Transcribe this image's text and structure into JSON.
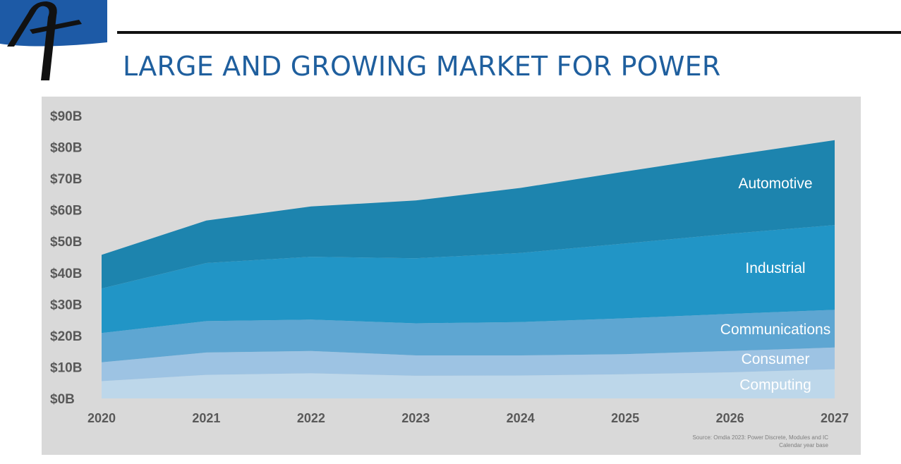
{
  "colors": {
    "title": "#1f5f9e",
    "logo_blue": "#1d5aa6",
    "panel_bg": "#d9d9d9",
    "axis_text": "#595959",
    "Computing": "#bdd7ea",
    "Consumer": "#9dc3e3",
    "Communications": "#5ea6d2",
    "Industrial": "#2195c6",
    "Automotive": "#1d84ae"
  },
  "header": {
    "title": "LARGE AND GROWING MARKET FOR POWER"
  },
  "logo": {
    "icon": "stylized-A-logo-icon"
  },
  "source": {
    "line1": "Source: Omdia 2023: Power Discrete, Modules and IC",
    "line2": "Calendar year base"
  },
  "chart_data": {
    "type": "area",
    "stacked": true,
    "title": "",
    "xlabel": "",
    "ylabel": "",
    "x": [
      "2020",
      "2021",
      "2022",
      "2023",
      "2024",
      "2025",
      "2026",
      "2027"
    ],
    "ylim": [
      0,
      90
    ],
    "y_ticks": [
      "$0B",
      "$10B",
      "$20B",
      "$30B",
      "$40B",
      "$50B",
      "$60B",
      "$70B",
      "$80B",
      "$90B"
    ],
    "grid": false,
    "legend": "inline labels on right",
    "series": [
      {
        "name": "Computing",
        "values": [
          5.5,
          7.5,
          8.0,
          7.2,
          7.3,
          7.7,
          8.3,
          9.3
        ]
      },
      {
        "name": "Consumer",
        "values": [
          6.0,
          7.1,
          7.1,
          6.5,
          6.4,
          6.4,
          6.8,
          6.9
        ]
      },
      {
        "name": "Communications",
        "values": [
          9.3,
          10.0,
          10.0,
          10.2,
          10.6,
          11.4,
          11.8,
          12.0
        ]
      },
      {
        "name": "Industrial",
        "values": [
          14.2,
          18.5,
          20.0,
          20.7,
          22.0,
          23.8,
          25.5,
          27.0
        ]
      },
      {
        "name": "Automotive",
        "values": [
          10.7,
          13.5,
          16.0,
          18.4,
          20.7,
          22.9,
          24.9,
          27.0
        ]
      }
    ]
  }
}
